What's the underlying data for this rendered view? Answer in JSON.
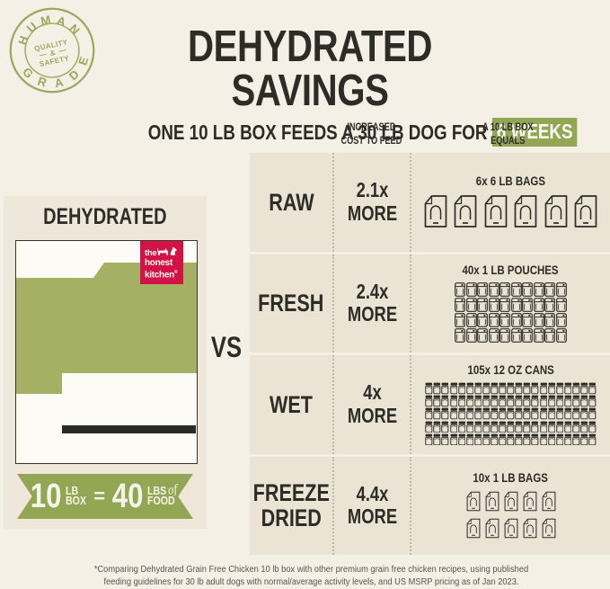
{
  "colors": {
    "page_bg": "#f4f0e6",
    "card_bg": "#efe8da",
    "row_bg": "#ebe3d4",
    "accent_green": "#93a654",
    "box_green": "#a4b164",
    "badge_green": "#9aa95e",
    "brand_red": "#d31245",
    "ink": "#2d2c27",
    "bar_black": "#2a2a26",
    "footnote_gray": "#57554e"
  },
  "badge": {
    "top_word": "HUMAN",
    "bottom_word": "GRADE",
    "center": [
      "QUALITY",
      "&",
      "SAFETY"
    ]
  },
  "header": {
    "title": "DEHYDRATED SAVINGS",
    "subtitle": "ONE 10 LB BOX FEEDS A 30 LB DOG FOR",
    "subtitle_highlight": "6 WEEKS"
  },
  "left_panel": {
    "heading": "DEHYDRATED",
    "logo": {
      "word1": "the",
      "word2": "honest",
      "word3": "kitchen",
      "reg": "®"
    },
    "ribbon": {
      "qty_left": "10",
      "unit_left_top": "LB",
      "unit_left_bottom": "BOX",
      "equals": "=",
      "qty_right": "40",
      "unit_right_top": "LBS",
      "of": "of",
      "unit_right_bottom": "FOOD"
    }
  },
  "vs": "VS",
  "comparison": {
    "col_header_cost": "INCREASED\nCOST TO FEED",
    "col_header_equals": "A 10 LB BOX\nEQUALS",
    "rows": [
      {
        "label": "RAW",
        "cost": "2.1x\nMORE",
        "caption": "6x 6 LB BAGS",
        "icon": "bag-large",
        "count": 6,
        "per_row": 6
      },
      {
        "label": "FRESH",
        "cost": "2.4x\nMORE",
        "caption": "40x 1 LB POUCHES",
        "icon": "pouch",
        "count": 40,
        "per_row": 10
      },
      {
        "label": "WET",
        "cost": "4x\nMORE",
        "caption": "105x 12 OZ CANS",
        "icon": "can",
        "count": 105,
        "per_row": 21
      },
      {
        "label": "FREEZE\nDRIED",
        "cost": "4.4x\nMORE",
        "caption": "10x 1 LB BAGS",
        "icon": "bag-small",
        "count": 10,
        "per_row": 5
      }
    ]
  },
  "footnote": "*Comparing Dehydrated Grain Free Chicken 10 lb box with other premium grain free chicken recipes, using published\nfeeding guidelines for 30 lb adult dogs with normal/average activity levels, and US MSRP pricing as of Jan 2023.",
  "chart_data": {
    "type": "table",
    "title": "DEHYDRATED SAVINGS",
    "subtitle": "ONE 10 LB BOX FEEDS A 30 LB DOG FOR 6 WEEKS",
    "baseline": "Dehydrated: one 10 lb box = 40 lbs of food",
    "categories": [
      "RAW",
      "FRESH",
      "WET",
      "FREEZE DRIED"
    ],
    "series": [
      {
        "name": "Increased cost to feed (multiplier)",
        "values": [
          2.1,
          2.4,
          4,
          4.4
        ]
      },
      {
        "name": "A 10 lb box equals (quantity)",
        "values": [
          6,
          40,
          105,
          10
        ]
      },
      {
        "name": "A 10 lb box equals (unit)",
        "values": [
          "6 lb bags",
          "1 lb pouches",
          "12 oz cans",
          "1 lb bags"
        ]
      }
    ]
  }
}
